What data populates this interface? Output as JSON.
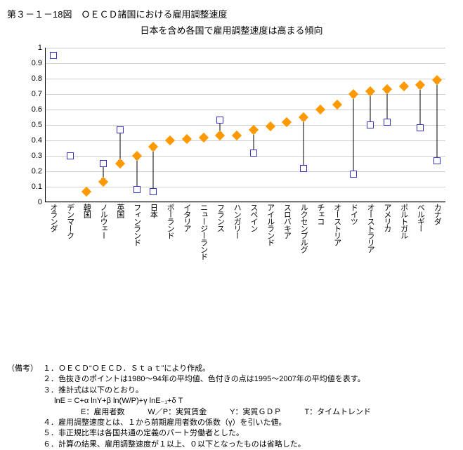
{
  "title": "第３－１－18図　ＯＥＣＤ諸国における雇用調整速度",
  "subtitle": "日本を含め各国で雇用調整速度は高まる傾向",
  "chart": {
    "type": "scatter-arrow",
    "ylim": [
      0,
      1
    ],
    "ytick_step": 0.1,
    "grid_color": "#d0d0d0",
    "square_color": "#3333cc",
    "diamond_color": "#ff9900",
    "label_fontsize": 11,
    "categories": [
      "オランダ",
      "デンマーク",
      "韓国",
      "ノルウェー",
      "英国",
      "フィンランド",
      "日本",
      "ポーランド",
      "イタリア",
      "ニュージーランド",
      "フランス",
      "ハンガリー",
      "スペイン",
      "アイルランド",
      "スロバキア",
      "ルクセンブルグ",
      "チェコ",
      "オーストリア",
      "ドイツ",
      "オーストラリア",
      "アメリカ",
      "ポルトガル",
      "ベルギー",
      "カナダ"
    ],
    "period1": [
      0.95,
      0.3,
      null,
      0.25,
      0.47,
      0.08,
      0.07,
      null,
      null,
      null,
      0.53,
      null,
      0.32,
      null,
      null,
      0.22,
      null,
      null,
      0.18,
      0.5,
      0.52,
      null,
      0.48,
      0.27
    ],
    "period2": [
      null,
      null,
      0.07,
      0.13,
      0.25,
      0.3,
      0.36,
      0.4,
      0.41,
      0.42,
      0.43,
      0.43,
      0.47,
      0.49,
      0.52,
      0.55,
      0.6,
      0.63,
      0.7,
      0.72,
      0.73,
      0.75,
      0.76,
      0.79
    ]
  },
  "notes": {
    "label": "（備考）",
    "items": [
      "１．ＯＥＣＤ“ＯＥＣＤ．Ｓｔａｔ”により作成。",
      "２．色抜きのポイントは1980〜94年の平均値、色付きの点は1995〜2007年の平均値を表す。",
      "３．推計式は以下のとおり。",
      "４．雇用調整速度とは、１から前期雇用者数の係数（γ）を引いた値。",
      "５．非正規比率は各国共通の定義のパート労働者とした。",
      "６．計算の結果、雇用調整速度が１以上、０以下となったものは省略した。"
    ],
    "formula": "lnE = C+α lnY+β ln(W/P)+γ lnE₋₁+δ T",
    "legend_line": "　　E：雇用者数　　　W／P：実質賃金　　　Y：実質ＧＤＰ　　　T：タイムトレンド"
  }
}
